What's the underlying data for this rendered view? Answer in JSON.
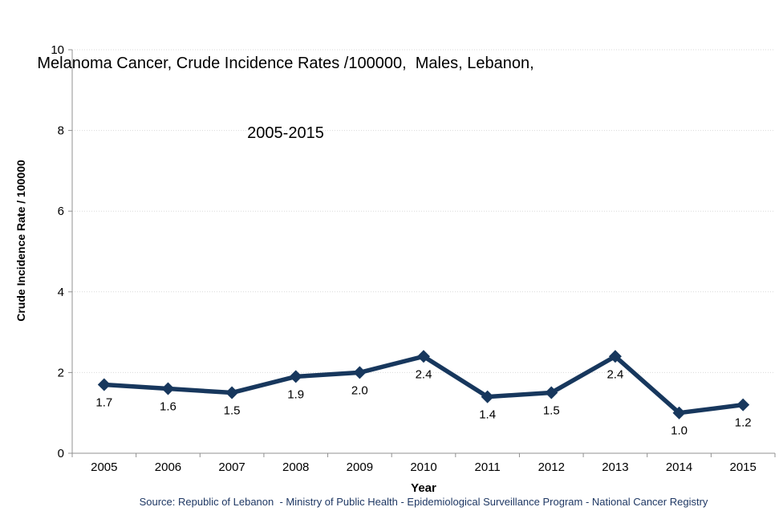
{
  "chart_data": {
    "type": "line",
    "title_line1": "Melanoma Cancer, Crude Incidence Rates /100000,  Males, Lebanon,",
    "title_line2": "2005-2015",
    "categories": [
      "2005",
      "2006",
      "2007",
      "2008",
      "2009",
      "2010",
      "2011",
      "2012",
      "2013",
      "2014",
      "2015"
    ],
    "values": [
      1.7,
      1.6,
      1.5,
      1.9,
      2.0,
      2.4,
      1.4,
      1.5,
      2.4,
      1.0,
      1.2
    ],
    "point_labels": [
      "1.7",
      "1.6",
      "1.5",
      "1.9",
      "2.0",
      "2.4",
      "1.4",
      "1.5",
      "2.4",
      "1.0",
      "1.2"
    ],
    "xlabel": "Year",
    "ylabel": "Crude Incidence Rate / 100000",
    "ylim": [
      0,
      10
    ],
    "yticks": [
      0,
      2,
      4,
      6,
      8,
      10
    ],
    "grid": "horizontal dotted",
    "legend_position": "none",
    "marker": "diamond",
    "colors": {
      "series": "#17375D",
      "gridline": "#D9D9D9",
      "axis": "#909090",
      "text": "#000000",
      "title_text": "#000000",
      "source_text": "#1F3864"
    },
    "source": "Source: Republic of Lebanon  - Ministry of Public Health - Epidemiological Surveillance Program - National Cancer Registry"
  }
}
